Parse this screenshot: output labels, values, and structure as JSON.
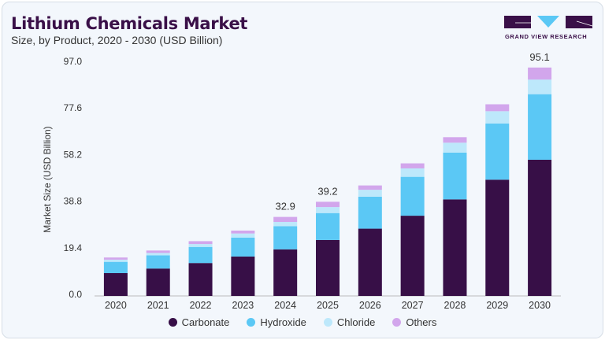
{
  "header": {
    "title": "Lithium Chemicals Market",
    "subtitle": "Size, by Product, 2020 - 2030 (USD Billion)"
  },
  "logo": {
    "text": "GRAND VIEW RESEARCH",
    "brand_color": "#3a1048",
    "accent_color": "#5bc8f5"
  },
  "chart_data": {
    "type": "bar",
    "stacked": true,
    "title": "Lithium Chemicals Market",
    "subtitle": "Size, by Product, 2020 - 2030 (USD Billion)",
    "xlabel": "",
    "ylabel": "Market Size (USD Billion)",
    "ylim": [
      0,
      97.0
    ],
    "yticks": [
      "0.0",
      "19.4",
      "38.8",
      "58.2",
      "77.6",
      "97.0"
    ],
    "grid": false,
    "legend_placement": "bottom",
    "categories": [
      "2020",
      "2021",
      "2022",
      "2023",
      "2024",
      "2025",
      "2026",
      "2027",
      "2028",
      "2029",
      "2030"
    ],
    "series": [
      {
        "name": "Carbonate",
        "color": "#370f47",
        "values": [
          9.5,
          11.4,
          13.7,
          16.4,
          19.4,
          23.3,
          28.0,
          33.4,
          40.2,
          48.4,
          56.7
        ]
      },
      {
        "name": "Hydroxide",
        "color": "#5bc8f5",
        "values": [
          4.7,
          5.5,
          6.7,
          7.9,
          9.6,
          11.2,
          13.3,
          16.2,
          19.5,
          23.4,
          27.3
        ]
      },
      {
        "name": "Chloride",
        "color": "#bde8fb",
        "values": [
          0.9,
          1.0,
          1.2,
          1.7,
          1.8,
          2.5,
          2.9,
          3.5,
          4.1,
          5.1,
          6.1
        ]
      },
      {
        "name": "Others",
        "color": "#d2a6ec",
        "values": [
          0.9,
          1.0,
          1.2,
          1.2,
          2.1,
          2.2,
          1.8,
          2.1,
          2.3,
          2.9,
          5.0
        ]
      }
    ],
    "data_labels": {
      "2024": "32.9",
      "2025": "39.2",
      "2030": "95.1"
    }
  }
}
